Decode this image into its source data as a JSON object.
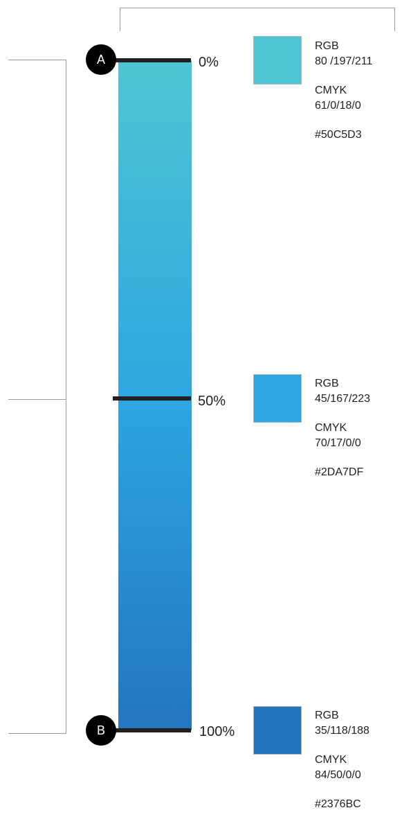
{
  "stops": [
    {
      "marker": "A",
      "percent": "0%",
      "color": "#50C5D3",
      "rgb_label": "RGB",
      "rgb_value": "80 /197/211",
      "cmyk_label": "CMYK",
      "cmyk_value": "61/0/18/0",
      "hex": "#50C5D3"
    },
    {
      "marker": "",
      "percent": "50%",
      "color": "#2DA7DF",
      "rgb_label": "RGB",
      "rgb_value": "45/167/223",
      "cmyk_label": "CMYK",
      "cmyk_value": "70/17/0/0",
      "hex": "#2DA7DF"
    },
    {
      "marker": "B",
      "percent": "100%",
      "color": "#2376BC",
      "rgb_label": "RGB",
      "rgb_value": "35/118/188",
      "cmyk_label": "CMYK",
      "cmyk_value": "84/50/0/0",
      "hex": "#2376BC"
    }
  ]
}
